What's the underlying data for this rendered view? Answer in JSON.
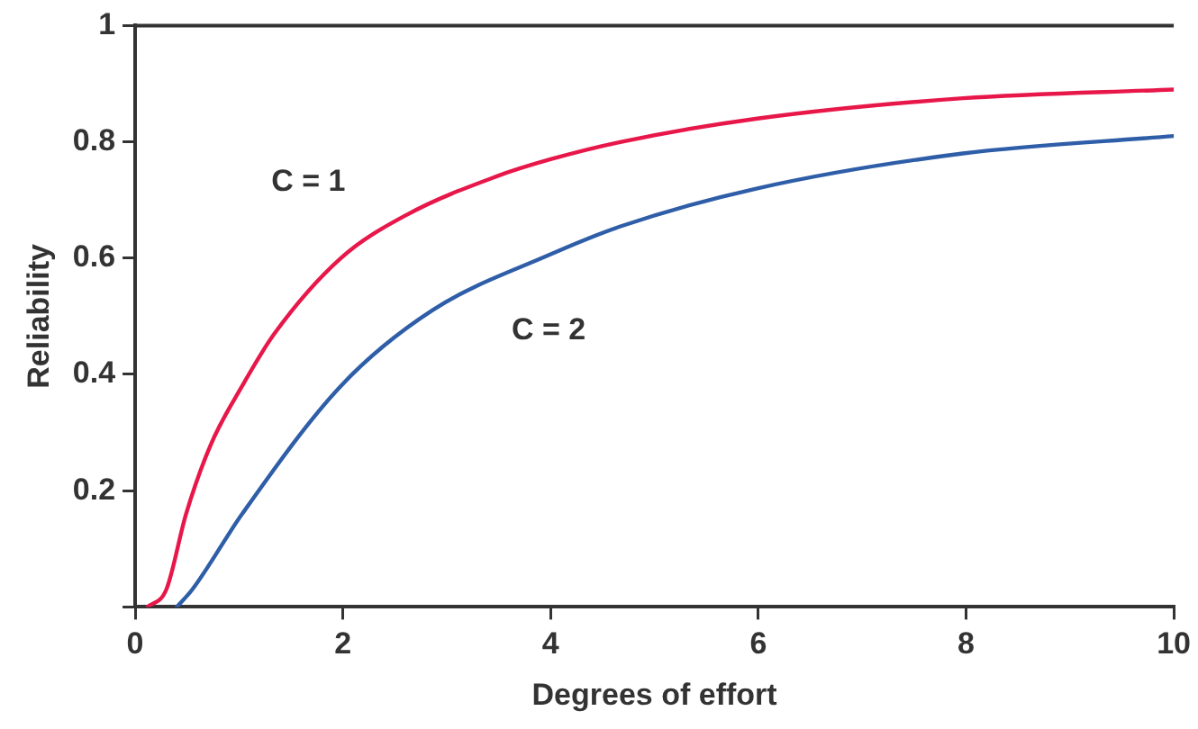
{
  "chart_data": {
    "type": "line",
    "xlabel": "Degrees of effort",
    "ylabel": "Reliability",
    "xlim": [
      0,
      10
    ],
    "xticks": [
      0,
      2,
      4,
      6,
      8,
      10
    ],
    "ylim": [
      0,
      1
    ],
    "yticks": [
      {
        "value": 0,
        "label": null
      },
      0.2,
      0.4,
      0.6,
      0.8,
      1
    ],
    "grid": false,
    "legend": false,
    "marker": "none",
    "line_style": "solid",
    "series": [
      {
        "name": "C = 1",
        "color": "#e8174a",
        "x": [
          0.12,
          0.3,
          0.49,
          0.73,
          1.03,
          1.34,
          1.98,
          2.62,
          3.47,
          4.0,
          4.68,
          5.99,
          7.97,
          10
        ],
        "values": [
          0,
          0.03,
          0.16,
          0.28,
          0.38,
          0.47,
          0.6,
          0.675,
          0.74,
          0.77,
          0.8,
          0.84,
          0.875,
          0.89
        ]
      },
      {
        "name": "C = 2",
        "color": "#2f5ea8",
        "x": [
          0.4,
          0.55,
          1.03,
          1.98,
          2.86,
          3.98,
          4.68,
          5.99,
          7.97,
          10
        ],
        "values": [
          0,
          0.03,
          0.16,
          0.38,
          0.51,
          0.605,
          0.655,
          0.72,
          0.78,
          0.81
        ]
      }
    ],
    "ref_lines": [
      {
        "axis": "y",
        "value": 1,
        "color": "#333333"
      }
    ]
  }
}
